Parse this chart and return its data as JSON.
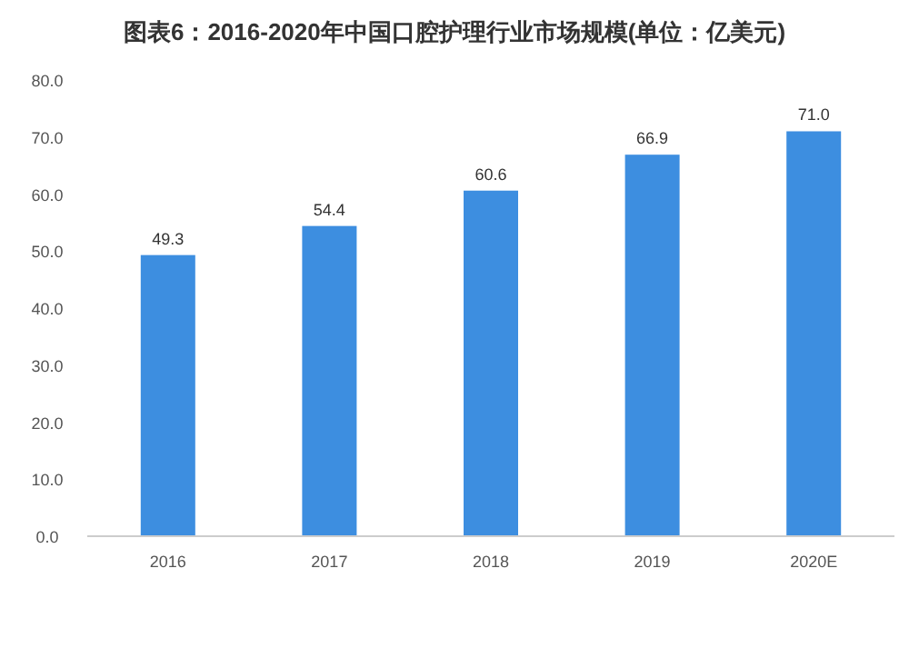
{
  "chart_data": {
    "type": "bar",
    "title": "图表6：2016-2020年中国口腔护理行业市场规模(单位：亿美元)",
    "categories": [
      "2016",
      "2017",
      "2018",
      "2019",
      "2020E"
    ],
    "values": [
      49.3,
      54.4,
      60.6,
      66.9,
      71.0
    ],
    "value_labels": [
      "49.3",
      "54.4",
      "60.6",
      "66.9",
      "71.0"
    ],
    "color": "#3d8ee0",
    "ylim": [
      0,
      80
    ],
    "yticks": [
      {
        "value": 0,
        "label": "0.0"
      },
      {
        "value": 10,
        "label": "10.0"
      },
      {
        "value": 20,
        "label": "20.0"
      },
      {
        "value": 30,
        "label": "30.0"
      },
      {
        "value": 40,
        "label": "40.0"
      },
      {
        "value": 50,
        "label": "50.0"
      },
      {
        "value": 60,
        "label": "60.0"
      },
      {
        "value": 70,
        "label": "70.0"
      },
      {
        "value": 80,
        "label": "80.0"
      }
    ],
    "grid": false
  }
}
